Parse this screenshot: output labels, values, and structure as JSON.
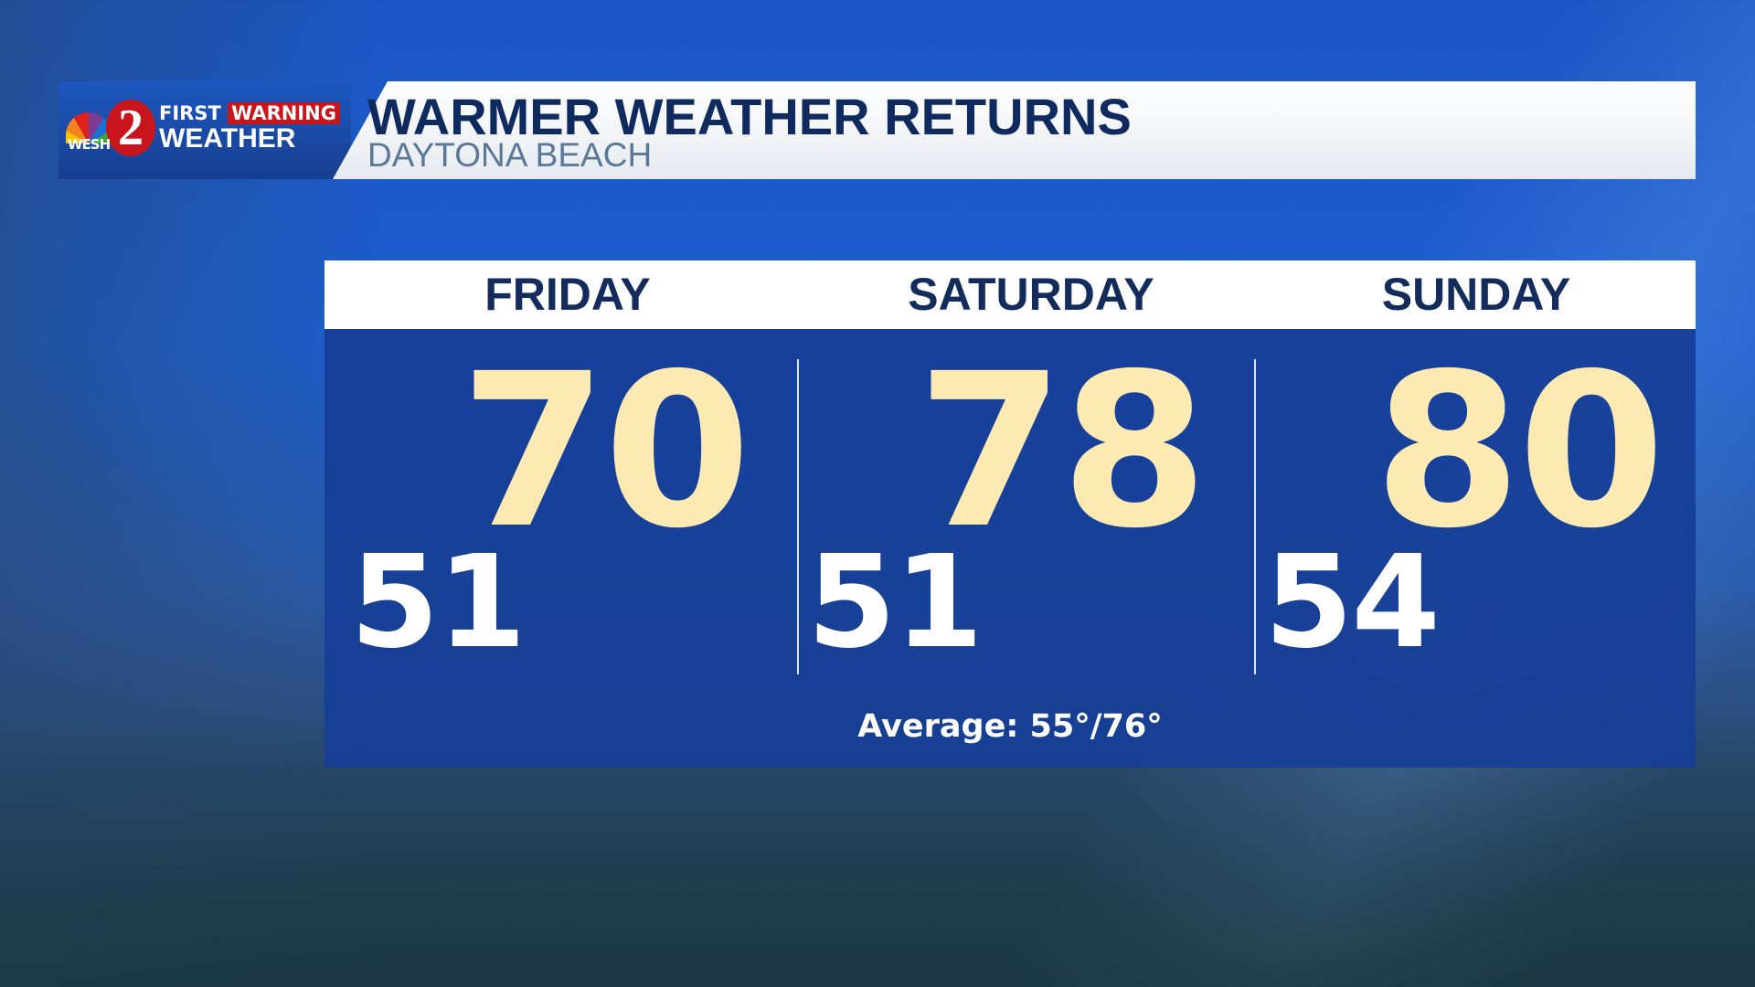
{
  "header": {
    "title": "WARMER WEATHER RETURNS",
    "subtitle": "DAYTONA BEACH",
    "logo": {
      "station": "WESH",
      "channel": "2",
      "brand_top_1": "FIRST",
      "brand_top_2": "WARNING",
      "brand_bottom": "WEATHER"
    }
  },
  "forecast": [
    {
      "day": "FRIDAY",
      "high": "70",
      "low": "51"
    },
    {
      "day": "SATURDAY",
      "high": "78",
      "low": "51"
    },
    {
      "day": "SUNDAY",
      "high": "80",
      "low": "54"
    }
  ],
  "average": "Average: 55°/76°",
  "colors": {
    "high": "#fde9b2",
    "panel": "#163e96",
    "title": "#0f2a5e"
  }
}
